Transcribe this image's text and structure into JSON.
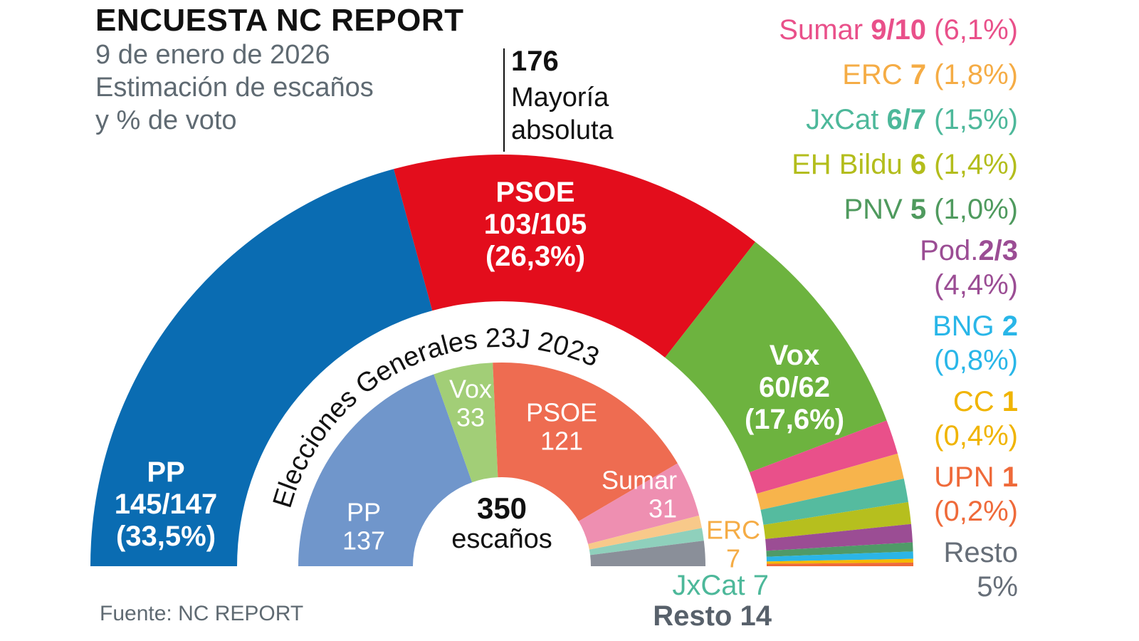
{
  "header": {
    "title": "ENCUESTA NC REPORT",
    "date": "9 de enero de 2026",
    "subtitle_1": "Estimación de escaños",
    "subtitle_2": "y % de voto"
  },
  "majority": {
    "seats": "176",
    "label_1": "Mayoría",
    "label_2": "absoluta"
  },
  "center": {
    "total": "350",
    "label": "escaños"
  },
  "source": "Fuente: NC REPORT",
  "chart_data": [
    {
      "type": "pie",
      "subtype": "hemicycle-outer",
      "total_seats": 350,
      "series": [
        {
          "name": "PP",
          "seats_label": "145/147",
          "seats": [
            145,
            147
          ],
          "vote": "33,5%",
          "color": "#0a6cb2"
        },
        {
          "name": "PSOE",
          "seats_label": "103/105",
          "seats": [
            103,
            105
          ],
          "vote": "26,3%",
          "color": "#e30d1c"
        },
        {
          "name": "Vox",
          "seats_label": "60/62",
          "seats": [
            60,
            62
          ],
          "vote": "17,6%",
          "color": "#6db33f"
        },
        {
          "name": "Sumar",
          "seats_label": "9/10",
          "seats": [
            9,
            10
          ],
          "vote": "6,1%",
          "color": "#e9508a",
          "text_color": "#e9508a"
        },
        {
          "name": "ERC",
          "seats_label": "7",
          "seats": [
            7,
            7
          ],
          "vote": "1,8%",
          "color": "#f7b44c",
          "text_color": "#f5ac45"
        },
        {
          "name": "JxCat",
          "seats_label": "6/7",
          "seats": [
            6,
            7
          ],
          "vote": "1,5%",
          "color": "#55bb9f",
          "text_color": "#4db89a"
        },
        {
          "name": "EH Bildu",
          "seats_label": "6",
          "seats": [
            6,
            6
          ],
          "vote": "1,4%",
          "color": "#b6bf1e",
          "text_color": "#b3bd1c"
        },
        {
          "name": "PNV",
          "seats_label": "5",
          "seats": [
            5,
            5
          ],
          "vote": "1,0%",
          "color": "#9b4d94",
          "text_color": "#4f9a5e"
        },
        {
          "name": "Pod.",
          "seats_label": "2/3",
          "seats": [
            2,
            3
          ],
          "vote": "4,4%",
          "color": "#4f9a68",
          "text_color": "#9b4d94"
        },
        {
          "name": "BNG",
          "seats_label": "2",
          "seats": [
            2,
            2
          ],
          "vote": "0,8%",
          "color": "#2bb5e6",
          "text_color": "#29b6e8"
        },
        {
          "name": "CC",
          "seats_label": "1",
          "seats": [
            1,
            1
          ],
          "vote": "0,4%",
          "color": "#f5b800",
          "text_color": "#f0b400"
        },
        {
          "name": "UPN",
          "seats_label": "1",
          "seats": [
            1,
            1
          ],
          "vote": "0,2%",
          "color": "#ef6a3a",
          "text_color": "#ef6a3a"
        }
      ],
      "resto": {
        "name": "Resto",
        "vote": "5%",
        "text_color": "#666e78"
      }
    },
    {
      "type": "pie",
      "subtype": "hemicycle-inner",
      "title": "Elecciones Generales 23J 2023",
      "total_seats": 350,
      "series": [
        {
          "name": "PP",
          "seats": 137,
          "label": "137",
          "color": "#7096cb"
        },
        {
          "name": "Vox",
          "seats": 33,
          "label": "33",
          "color": "#a2ce77"
        },
        {
          "name": "PSOE",
          "seats": 121,
          "label": "121",
          "color": "#ee6c51"
        },
        {
          "name": "Sumar",
          "seats": 31,
          "label": "31",
          "color": "#ee8fb1"
        },
        {
          "name": "ERC",
          "seats": 7,
          "label": "7",
          "color": "#f8c98a",
          "text_color": "#f5ac45"
        },
        {
          "name": "JxCat",
          "seats": 7,
          "label": "7",
          "color": "#8fd0bc",
          "text_color": "#4db89a"
        },
        {
          "name": "Resto",
          "seats": 14,
          "label": "14",
          "color": "#8a8f99",
          "text_color": "#58616b"
        }
      ]
    }
  ]
}
